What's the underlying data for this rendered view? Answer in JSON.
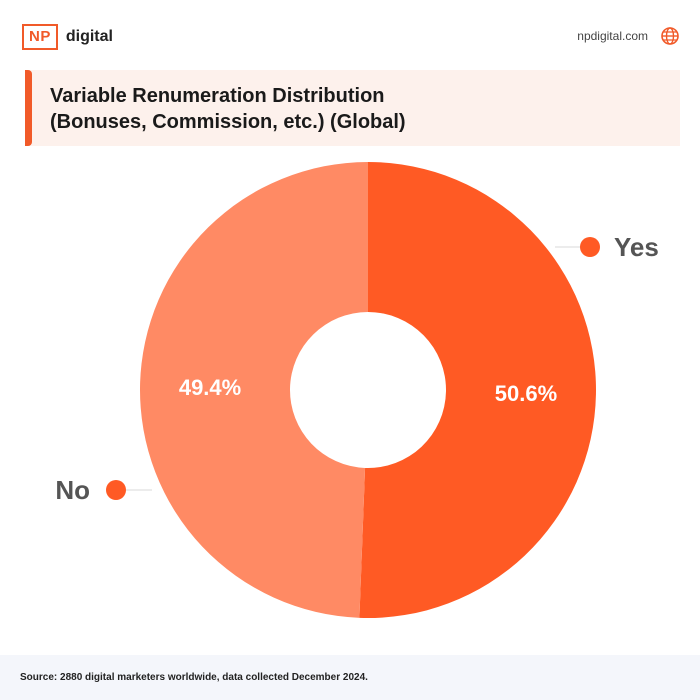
{
  "brand": {
    "box_text": "NP",
    "text": "digital"
  },
  "site": {
    "url": "npdigital.com",
    "icon": "globe-icon"
  },
  "title": {
    "line1": "Variable Renumeration Distribution",
    "line2": "(Bonuses, Commission, etc.) (Global)"
  },
  "colors": {
    "accent": "#f15a29",
    "yes": "#ff5a24",
    "no": "#ff8a64",
    "label": "#555555"
  },
  "chart_data": {
    "type": "pie",
    "variant": "donut",
    "slices": [
      {
        "label": "Yes",
        "value": 50.6,
        "display": "50.6%",
        "color": "#ff5a24"
      },
      {
        "label": "No",
        "value": 49.4,
        "display": "49.4%",
        "color": "#ff8a64"
      }
    ],
    "legend": "callouts beside slices"
  },
  "footer": {
    "source": "Source: 2880 digital marketers worldwide, data collected December 2024."
  }
}
